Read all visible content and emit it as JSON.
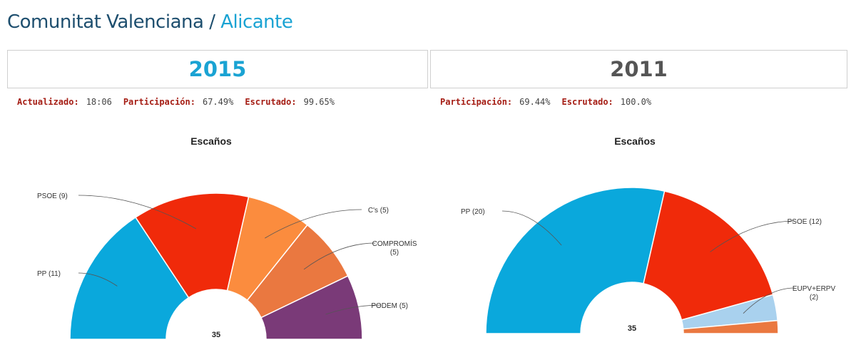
{
  "breadcrumb": {
    "region": "Comunitat Valenciana",
    "separator": "/",
    "province": "Alicante"
  },
  "panels": [
    {
      "year": "2015",
      "stats": [
        {
          "label": "Actualizado:",
          "value": "18:06"
        },
        {
          "label": "Participación:",
          "value": "67.49%"
        },
        {
          "label": "Escrutado:",
          "value": "99.65%"
        }
      ]
    },
    {
      "year": "2011",
      "stats": [
        {
          "label": "Participación:",
          "value": "69.44%"
        },
        {
          "label": "Escrutado:",
          "value": "100.0%"
        }
      ]
    }
  ],
  "chart_data": [
    {
      "type": "pie",
      "subtype": "semicircle-donut",
      "title": "Escaños",
      "total": 35,
      "series": [
        {
          "name": "PP",
          "value": 11,
          "label": "PP (11)",
          "color": "#0aa8dc"
        },
        {
          "name": "PSOE",
          "value": 9,
          "label": "PSOE (9)",
          "color": "#f02a0a"
        },
        {
          "name": "C's",
          "value": 5,
          "label": "C's (5)",
          "color": "#fb8c3e"
        },
        {
          "name": "COMPROMÍS",
          "value": 5,
          "label": "COMPROMÍS (5)",
          "color": "#ea7840"
        },
        {
          "name": "PODEM",
          "value": 5,
          "label": "PODEM (5)",
          "color": "#7a3a78"
        }
      ]
    },
    {
      "type": "pie",
      "subtype": "semicircle-donut",
      "title": "Escaños",
      "total": 35,
      "series": [
        {
          "name": "PP",
          "value": 20,
          "label": "PP (20)",
          "color": "#0aa8dc"
        },
        {
          "name": "PSOE",
          "value": 12,
          "label": "PSOE (12)",
          "color": "#f02a0a"
        },
        {
          "name": "EUPV+ERPV",
          "value": 2,
          "label": "EUPV+ERPV (2)",
          "color": "#a9d1ee"
        },
        {
          "name": "",
          "value": 1,
          "label": "",
          "color": "#ea7840"
        }
      ]
    }
  ]
}
